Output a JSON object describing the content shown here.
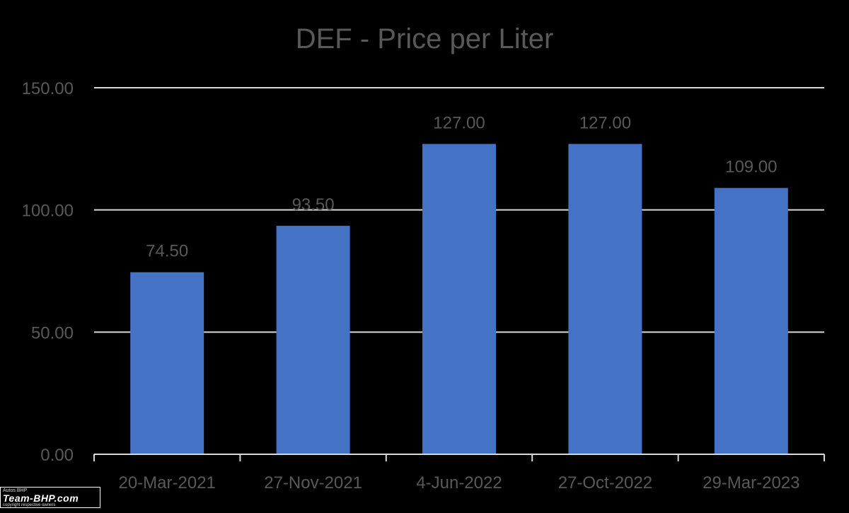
{
  "chart_data": {
    "type": "bar",
    "title": "DEF - Price per Liter",
    "xlabel": "",
    "ylabel": "",
    "categories": [
      "20-Mar-2021",
      "27-Nov-2021",
      "4-Jun-2022",
      "27-Oct-2022",
      "29-Mar-2023"
    ],
    "values": [
      74.5,
      93.5,
      127,
      127,
      109
    ],
    "value_labels": [
      "74.50",
      "93.50",
      "127.00",
      "127.00",
      "109.00"
    ],
    "ylim": [
      0,
      150
    ],
    "yticks": [
      0,
      50,
      100,
      150
    ],
    "ytick_labels": [
      "0.00",
      "50.00",
      "100.00",
      "150.00"
    ],
    "grid": true,
    "legend": "none",
    "colors": {
      "bar": "#4472C4",
      "text": "#595959",
      "grid": "#D9D9D9",
      "background": "#000000"
    }
  },
  "watermark": {
    "tag": "Autos BHP",
    "name": "Team-BHP.com",
    "note": "copyright respective owners"
  }
}
